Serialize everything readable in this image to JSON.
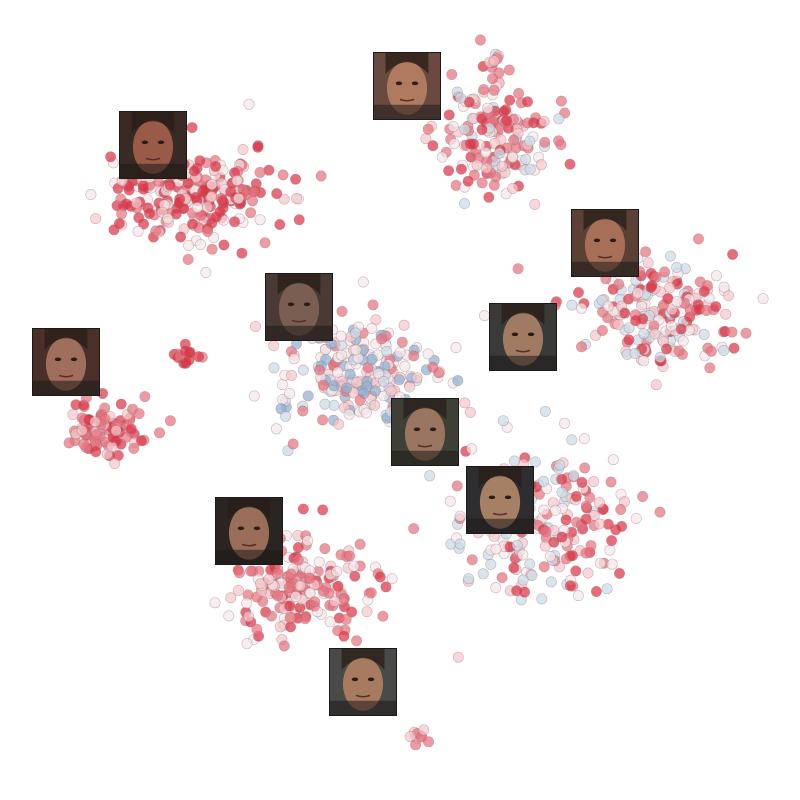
{
  "chart_data": {
    "type": "scatter",
    "title": "",
    "xlabel": "",
    "ylabel": "",
    "axes_visible": false,
    "grid": false,
    "legend": "none",
    "point_colors": {
      "strong_red": "#dc3545",
      "mid_red": "#e8737f",
      "light_pink": "#f5c6cb",
      "pale": "#f3e8ea",
      "light_blue": "#c9dbe8",
      "blue": "#8fb1d3"
    },
    "clusters": [
      {
        "center": [
          190,
          195
        ],
        "spread": [
          80,
          45
        ],
        "count": 240,
        "palette": [
          "strong_red",
          "strong_red",
          "mid_red",
          "light_pink",
          "pale"
        ]
      },
      {
        "center": [
          490,
          135
        ],
        "spread": [
          50,
          55
        ],
        "count": 170,
        "palette": [
          "strong_red",
          "mid_red",
          "mid_red",
          "light_pink",
          "pale",
          "light_blue"
        ]
      },
      {
        "center": [
          655,
          310
        ],
        "spread": [
          75,
          50
        ],
        "count": 200,
        "palette": [
          "strong_red",
          "mid_red",
          "light_pink",
          "pale",
          "light_blue"
        ]
      },
      {
        "center": [
          360,
          375
        ],
        "spread": [
          80,
          50
        ],
        "count": 230,
        "palette": [
          "pale",
          "light_pink",
          "light_blue",
          "mid_red",
          "blue",
          "pale"
        ]
      },
      {
        "center": [
          105,
          430
        ],
        "spread": [
          40,
          25
        ],
        "count": 90,
        "palette": [
          "strong_red",
          "mid_red",
          "mid_red",
          "light_pink"
        ]
      },
      {
        "center": [
          185,
          355
        ],
        "spread": [
          12,
          8
        ],
        "count": 14,
        "palette": [
          "strong_red",
          "mid_red"
        ]
      },
      {
        "center": [
          540,
          520
        ],
        "spread": [
          75,
          70
        ],
        "count": 210,
        "palette": [
          "strong_red",
          "mid_red",
          "light_pink",
          "pale",
          "light_blue"
        ]
      },
      {
        "center": [
          300,
          585
        ],
        "spread": [
          65,
          45
        ],
        "count": 200,
        "palette": [
          "strong_red",
          "mid_red",
          "mid_red",
          "light_pink",
          "pale"
        ]
      },
      {
        "center": [
          415,
          738
        ],
        "spread": [
          10,
          8
        ],
        "count": 10,
        "palette": [
          "mid_red",
          "light_pink",
          "pale"
        ]
      },
      {
        "center": [
          495,
          62
        ],
        "spread": [
          8,
          8
        ],
        "count": 8,
        "palette": [
          "mid_red",
          "light_pink"
        ]
      }
    ],
    "thumbnails": [
      {
        "name": "face-thumbnail-1",
        "center": [
          407,
          86
        ],
        "skin": "#b07a60",
        "bg": "#6a4a40"
      },
      {
        "name": "face-thumbnail-2",
        "center": [
          153,
          145
        ],
        "skin": "#9a5a48",
        "bg": "#3a2a25"
      },
      {
        "name": "face-thumbnail-3",
        "center": [
          605,
          243
        ],
        "skin": "#a86f58",
        "bg": "#5a4035"
      },
      {
        "name": "face-thumbnail-4",
        "center": [
          299,
          307
        ],
        "skin": "#7a5e52",
        "bg": "#4a3a35"
      },
      {
        "name": "face-thumbnail-5",
        "center": [
          523,
          337
        ],
        "skin": "#a07a62",
        "bg": "#3a3a38"
      },
      {
        "name": "face-thumbnail-6",
        "center": [
          66,
          362
        ],
        "skin": "#a06e5c",
        "bg": "#4a3028"
      },
      {
        "name": "face-thumbnail-7",
        "center": [
          425,
          432
        ],
        "skin": "#9a7560",
        "bg": "#3e4038"
      },
      {
        "name": "face-thumbnail-8",
        "center": [
          500,
          500
        ],
        "skin": "#a68065",
        "bg": "#2e2e30"
      },
      {
        "name": "face-thumbnail-9",
        "center": [
          249,
          531
        ],
        "skin": "#9a6e5a",
        "bg": "#2a2522"
      },
      {
        "name": "face-thumbnail-10",
        "center": [
          363,
          682
        ],
        "skin": "#a87a60",
        "bg": "#4a4a48"
      }
    ]
  }
}
